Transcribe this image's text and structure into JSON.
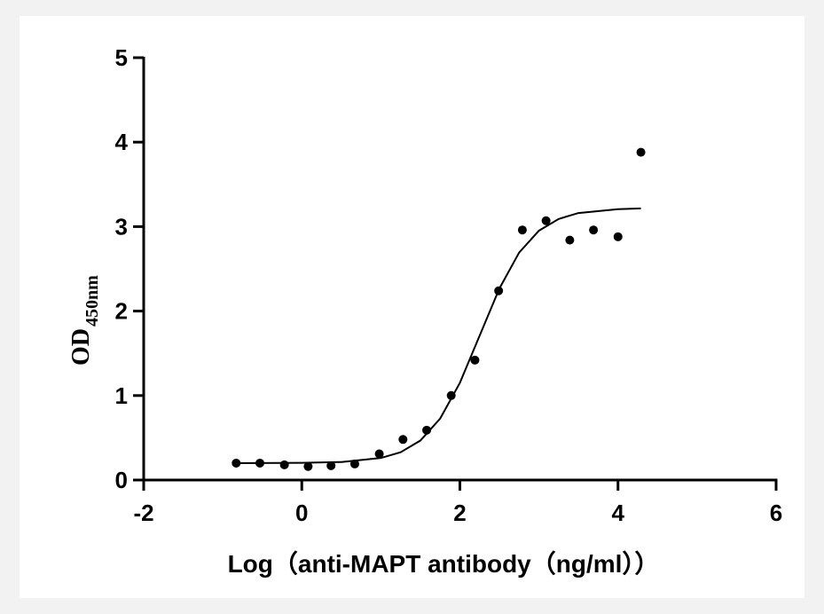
{
  "chart_data": {
    "type": "scatter",
    "x_label": "Log（anti-MAPT antibody（ng/ml））",
    "y_label": "OD",
    "y_label_sub": "450nm",
    "series": [
      {
        "x": [
          -0.83,
          -0.53,
          -0.22,
          0.08,
          0.37,
          0.67,
          0.98,
          1.28,
          1.58,
          1.89,
          2.19,
          2.49,
          2.79,
          3.09,
          3.39,
          3.69,
          4.0,
          4.29
        ],
        "values": [
          0.2,
          0.2,
          0.18,
          0.16,
          0.17,
          0.19,
          0.31,
          0.48,
          0.59,
          1.0,
          1.42,
          2.24,
          2.96,
          3.07,
          2.84,
          2.96,
          2.88,
          3.88
        ],
        "color": "#000000"
      },
      {
        "type": "line",
        "x": [
          -0.83,
          0,
          0.5,
          1,
          1.25,
          1.5,
          1.75,
          2,
          2.25,
          2.5,
          2.75,
          3,
          3.25,
          3.5,
          4,
          4.29
        ],
        "values": [
          0.2,
          0.203,
          0.213,
          0.261,
          0.329,
          0.467,
          0.727,
          1.151,
          1.71,
          2.268,
          2.694,
          2.952,
          3.091,
          3.161,
          3.207,
          3.215
        ],
        "color": "#000000"
      }
    ],
    "xlim": [
      -2,
      6
    ],
    "xticks": [
      -2,
      0,
      2,
      4,
      6
    ],
    "ylim": [
      0,
      5
    ],
    "yticks": [
      0,
      1,
      2,
      3,
      4,
      5
    ]
  }
}
